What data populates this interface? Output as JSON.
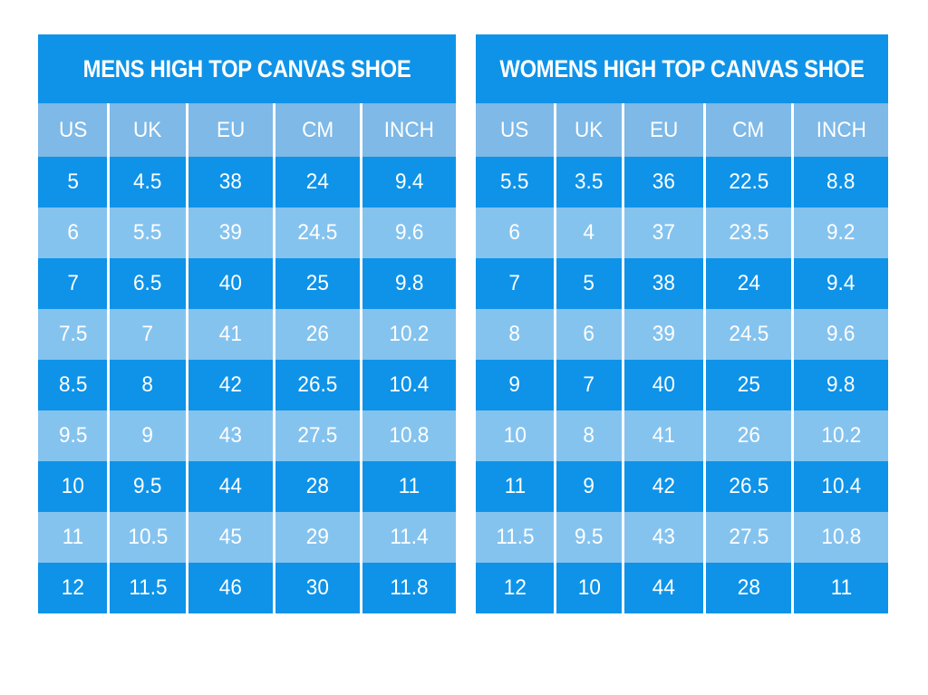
{
  "colors": {
    "dark_blue": "#0e93e9",
    "header_blue": "#7eb9e7",
    "light_blue": "#85c3ef",
    "text_white": "#ffffff",
    "page_background": "#ffffff"
  },
  "chart_data": [
    {
      "type": "table",
      "title": "MENS HIGH TOP CANVAS SHOE",
      "columns": [
        "US",
        "UK",
        "EU",
        "CM",
        "INCH"
      ],
      "rows": [
        [
          5,
          4.5,
          38,
          24,
          9.4
        ],
        [
          6,
          5.5,
          39,
          24.5,
          9.6
        ],
        [
          7,
          6.5,
          40,
          25,
          9.8
        ],
        [
          7.5,
          7,
          41,
          26,
          10.2
        ],
        [
          8.5,
          8,
          42,
          26.5,
          10.4
        ],
        [
          9.5,
          9,
          43,
          27.5,
          10.8
        ],
        [
          10,
          9.5,
          44,
          28,
          11
        ],
        [
          11,
          10.5,
          45,
          29,
          11.4
        ],
        [
          12,
          11.5,
          46,
          30,
          11.8
        ]
      ],
      "layout": {
        "row_striping": "dark,light alternating starting dark",
        "grid": "white vertical separators"
      }
    },
    {
      "type": "table",
      "title": "WOMENS HIGH TOP CANVAS SHOE",
      "columns": [
        "US",
        "UK",
        "EU",
        "CM",
        "INCH"
      ],
      "rows": [
        [
          5.5,
          3.5,
          36,
          22.5,
          8.8
        ],
        [
          6,
          4,
          37,
          23.5,
          9.2
        ],
        [
          7,
          5,
          38,
          24,
          9.4
        ],
        [
          8,
          6,
          39,
          24.5,
          9.6
        ],
        [
          9,
          7,
          40,
          25,
          9.8
        ],
        [
          10,
          8,
          41,
          26,
          10.2
        ],
        [
          11,
          9,
          42,
          26.5,
          10.4
        ],
        [
          11.5,
          9.5,
          43,
          27.5,
          10.8
        ],
        [
          12,
          10,
          44,
          28,
          11
        ]
      ],
      "layout": {
        "row_striping": "dark,light alternating starting dark",
        "grid": "white vertical separators"
      }
    }
  ]
}
